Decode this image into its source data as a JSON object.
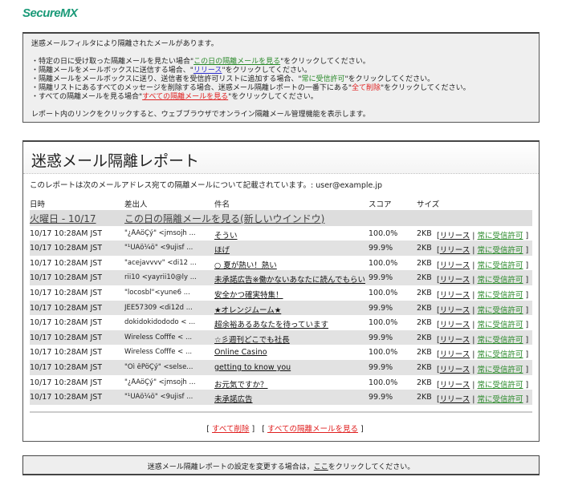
{
  "logo": "SecureMX",
  "info": {
    "intro": "迷惑メールフィルタにより隔離されたメールがあります。",
    "lines": [
      {
        "pre": "・特定の日に受け取った隔離メールを見たい場合\"",
        "link": "この日の隔離メールを見る",
        "post": "\"をクリックしてください。"
      },
      {
        "pre": "・隔離メールをメールボックスに送信する場合、\"",
        "link": "リリース",
        "post": "\"をクリックしてください。"
      },
      {
        "pre": "・隔離メールをメールボックスに送り、送信者を受信許可リストに追加する場合、\"",
        "link": "常に受信許可",
        "post": "\"をクリックしてください。"
      },
      {
        "pre": "・隔離リストにあるすべてのメッセージを削除する場合、迷惑メール隔離レポートの一番下にある\"",
        "link": "全て削除",
        "post": "\"をクリックしてください。"
      },
      {
        "pre": "・すべての隔離メールを見る場合\"",
        "link": "すべての隔離メールを見る",
        "post": "\"をクリックしてください。"
      }
    ],
    "outro": "レポート内のリンクをクリックすると、ウェブブラウザでオンライン隔離メール管理機能を表示します。"
  },
  "report": {
    "title": "迷惑メール隔離レポート",
    "address_text": "このレポートは次のメールアドレス宛ての隔離メールについて記載されています。:",
    "address": "user@example.jp",
    "columns": [
      "日時",
      "差出人",
      "件名",
      "スコア",
      "サイズ"
    ],
    "group": {
      "date": "火曜日 - 10/17",
      "link": "この日の隔離メールを見る(新しいウインドウ)"
    },
    "release_label": "リリース",
    "allow_label": "常に受信許可",
    "rows": [
      {
        "date": "10/17 10:28AM JST",
        "from": "\"¿ÅÁöÇý\" <jmsojh ...",
        "subject": "そうい",
        "score": "100.0%",
        "size": "2KB"
      },
      {
        "date": "10/17 10:28AM JST",
        "from": "\"¹ÚÁö¼ö\" <9ujisf ...",
        "subject": "ほげ",
        "score": "99.9%",
        "size": "2KB"
      },
      {
        "date": "10/17 10:28AM JST",
        "from": "\"acejavvvv\" <di12 ...",
        "subject": "○ 夏が熱い！熱い",
        "score": "100.0%",
        "size": "2KB"
      },
      {
        "date": "10/17 10:28AM JST",
        "from": "rii10 <yayrii10@ly ...",
        "subject": "未承諾広告※働かないあなたに読んでもらい",
        "score": "99.9%",
        "size": "2KB"
      },
      {
        "date": "10/17 10:28AM JST",
        "from": "\"locosbl\"<yune6 ...",
        "subject": "安全かつ確実特集！",
        "score": "100.0%",
        "size": "2KB"
      },
      {
        "date": "10/17 10:28AM JST",
        "from": "JEE57309 <di12d ...",
        "subject": "★オレンジムーム★",
        "score": "99.9%",
        "size": "2KB"
      },
      {
        "date": "10/17 10:28AM JST",
        "from": "dokidokidododo < ...",
        "subject": "超余裕あるあなたを待っています",
        "score": "100.0%",
        "size": "2KB"
      },
      {
        "date": "10/17 10:28AM JST",
        "from": "Wireless Cofffe < ...",
        "subject": "☆彡週刊どこでも社長",
        "score": "99.9%",
        "size": "2KB"
      },
      {
        "date": "10/17 10:28AM JST",
        "from": "Wireless Cofffe < ...",
        "subject": "Online Casino",
        "score": "100.0%",
        "size": "2KB"
      },
      {
        "date": "10/17 10:28AM JST",
        "from": "\"Öì êPöÇý\" <selse...",
        "subject": "getting to know you",
        "score": "99.9%",
        "size": "2KB"
      },
      {
        "date": "10/17 10:28AM JST",
        "from": "\"¿ÅÁöÇý\" <jmsojh ...",
        "subject": "お元気ですか？",
        "score": "100.0%",
        "size": "2KB"
      },
      {
        "date": "10/17 10:28AM JST",
        "from": "\"¹ÚÁö¼ö\" <9ujisf ...",
        "subject": "未承諾広告",
        "score": "99.9%",
        "size": "2KB"
      }
    ],
    "delete_all": "すべて削除",
    "view_all": "すべての隔離メールを見る"
  },
  "footer": {
    "pre": "迷惑メール隔離レポートの設定を変更する場合は，",
    "link": "ここ",
    "post": "をクリックしてください。"
  },
  "colors": {
    "brand": "#1a9a78",
    "green_link": "#2a8a2a",
    "blue_link": "#2a2acc",
    "red_link": "#e02020"
  }
}
